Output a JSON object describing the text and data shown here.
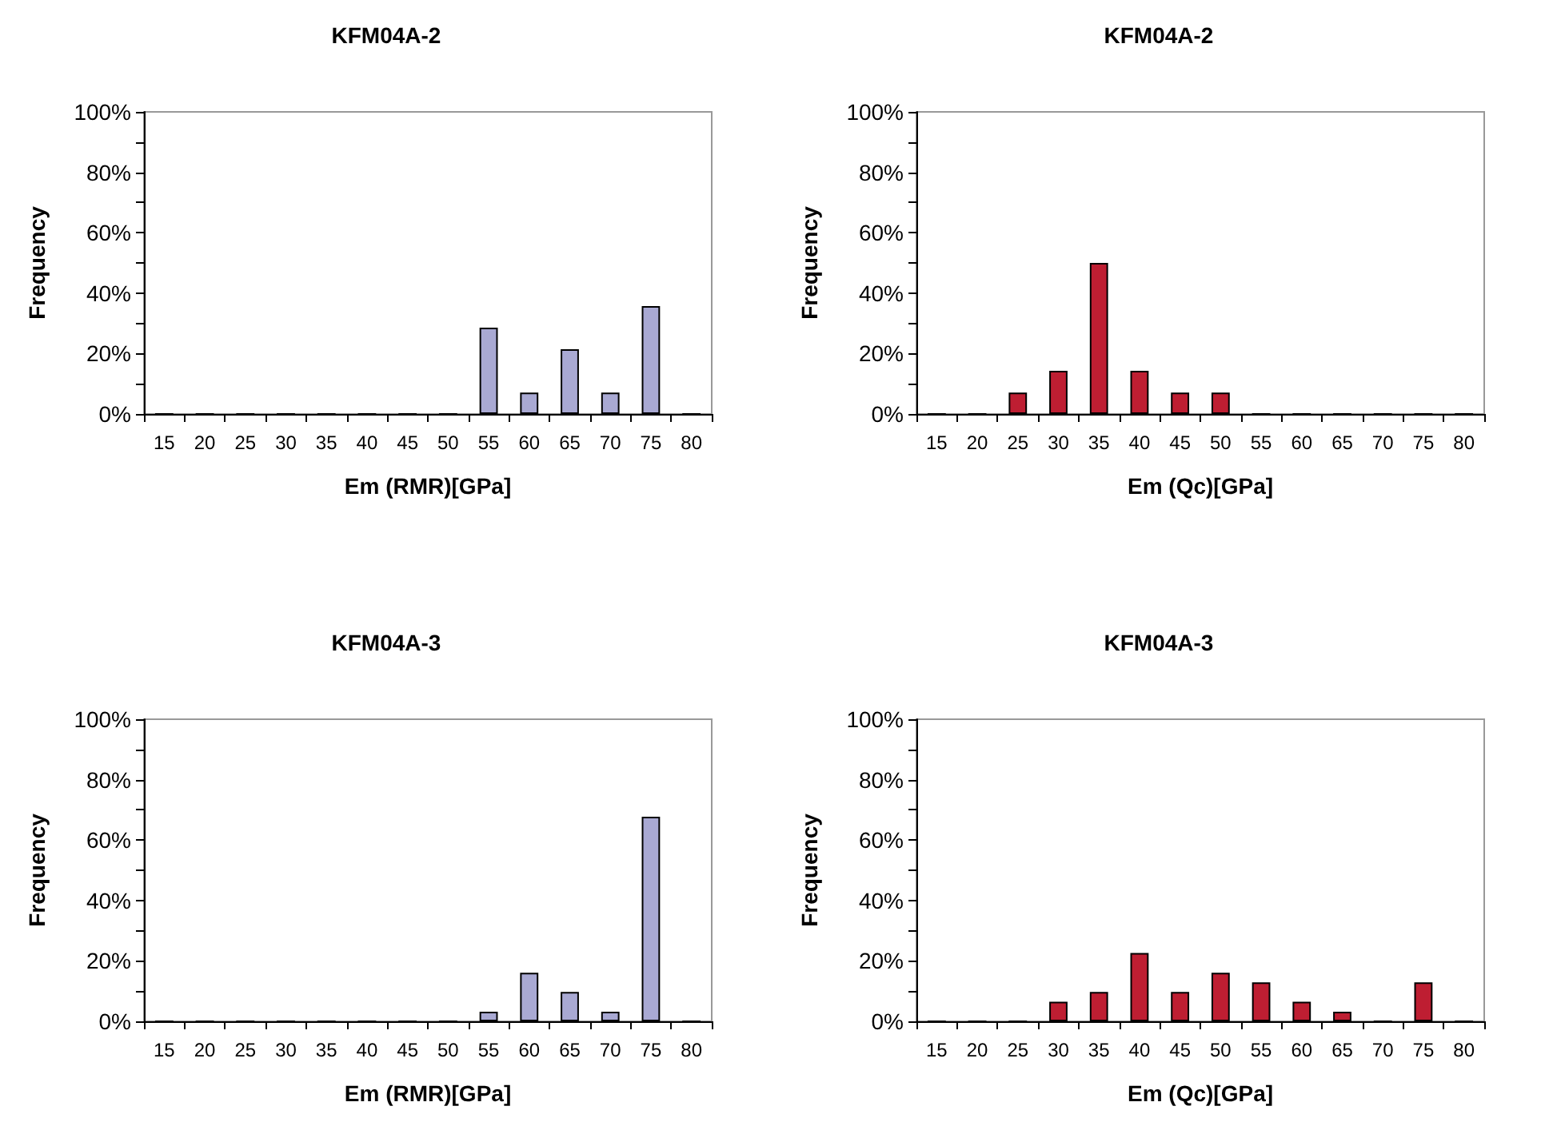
{
  "chart_data": [
    {
      "type": "bar",
      "title": "KFM04A-2",
      "xlabel": "Em (RMR)[GPa]",
      "ylabel": "Frequency",
      "categories": [
        "15",
        "20",
        "25",
        "30",
        "35",
        "40",
        "45",
        "50",
        "55",
        "60",
        "65",
        "70",
        "75",
        "80"
      ],
      "values": [
        0,
        0,
        0,
        0,
        0,
        0,
        0,
        0,
        28.6,
        7.1,
        21.4,
        7.1,
        35.7,
        0
      ],
      "color": "#a9a9d3",
      "ylim": [
        0,
        100
      ],
      "yticks": [
        {
          "value": 0,
          "label": "0%"
        },
        {
          "value": 10,
          "label": null
        },
        {
          "value": 20,
          "label": "20%"
        },
        {
          "value": 30,
          "label": null
        },
        {
          "value": 40,
          "label": "40%"
        },
        {
          "value": 50,
          "label": null
        },
        {
          "value": 60,
          "label": "60%"
        },
        {
          "value": 70,
          "label": null
        },
        {
          "value": 80,
          "label": "80%"
        },
        {
          "value": 90,
          "label": null
        },
        {
          "value": 100,
          "label": "100%"
        }
      ],
      "grid": false
    },
    {
      "type": "bar",
      "title": "KFM04A-2",
      "xlabel": "Em (Qc)[GPa]",
      "ylabel": "Frequency",
      "categories": [
        "15",
        "20",
        "25",
        "30",
        "35",
        "40",
        "45",
        "50",
        "55",
        "60",
        "65",
        "70",
        "75",
        "80"
      ],
      "values": [
        0,
        0,
        7.1,
        14.3,
        50,
        14.3,
        7.1,
        7.1,
        0,
        0,
        0,
        0,
        0,
        0
      ],
      "color": "#be1e32",
      "ylim": [
        0,
        100
      ],
      "yticks": [
        {
          "value": 0,
          "label": "0%"
        },
        {
          "value": 10,
          "label": null
        },
        {
          "value": 20,
          "label": "20%"
        },
        {
          "value": 30,
          "label": null
        },
        {
          "value": 40,
          "label": "40%"
        },
        {
          "value": 50,
          "label": null
        },
        {
          "value": 60,
          "label": "60%"
        },
        {
          "value": 70,
          "label": null
        },
        {
          "value": 80,
          "label": "80%"
        },
        {
          "value": 90,
          "label": null
        },
        {
          "value": 100,
          "label": "100%"
        }
      ],
      "grid": false
    },
    {
      "type": "bar",
      "title": "KFM04A-3",
      "xlabel": "Em (RMR)[GPa]",
      "ylabel": "Frequency",
      "categories": [
        "15",
        "20",
        "25",
        "30",
        "35",
        "40",
        "45",
        "50",
        "55",
        "60",
        "65",
        "70",
        "75",
        "80"
      ],
      "values": [
        0,
        0,
        0,
        0,
        0,
        0,
        0,
        0,
        3.2,
        16.1,
        9.7,
        3.2,
        67.7,
        0
      ],
      "color": "#a9a9d3",
      "ylim": [
        0,
        100
      ],
      "yticks": [
        {
          "value": 0,
          "label": "0%"
        },
        {
          "value": 10,
          "label": null
        },
        {
          "value": 20,
          "label": "20%"
        },
        {
          "value": 30,
          "label": null
        },
        {
          "value": 40,
          "label": "40%"
        },
        {
          "value": 50,
          "label": null
        },
        {
          "value": 60,
          "label": "60%"
        },
        {
          "value": 70,
          "label": null
        },
        {
          "value": 80,
          "label": "80%"
        },
        {
          "value": 90,
          "label": null
        },
        {
          "value": 100,
          "label": "100%"
        }
      ],
      "grid": false
    },
    {
      "type": "bar",
      "title": "KFM04A-3",
      "xlabel": "Em (Qc)[GPa]",
      "ylabel": "Frequency",
      "categories": [
        "15",
        "20",
        "25",
        "30",
        "35",
        "40",
        "45",
        "50",
        "55",
        "60",
        "65",
        "70",
        "75",
        "80"
      ],
      "values": [
        0,
        0,
        0,
        6.5,
        9.7,
        22.6,
        9.7,
        16.1,
        12.9,
        6.5,
        3.2,
        0,
        12.9,
        0
      ],
      "color": "#be1e32",
      "ylim": [
        0,
        100
      ],
      "yticks": [
        {
          "value": 0,
          "label": "0%"
        },
        {
          "value": 10,
          "label": null
        },
        {
          "value": 20,
          "label": "20%"
        },
        {
          "value": 30,
          "label": null
        },
        {
          "value": 40,
          "label": "40%"
        },
        {
          "value": 50,
          "label": null
        },
        {
          "value": 60,
          "label": "60%"
        },
        {
          "value": 70,
          "label": null
        },
        {
          "value": 80,
          "label": "80%"
        },
        {
          "value": 90,
          "label": null
        },
        {
          "value": 100,
          "label": "100%"
        }
      ],
      "grid": false
    }
  ]
}
